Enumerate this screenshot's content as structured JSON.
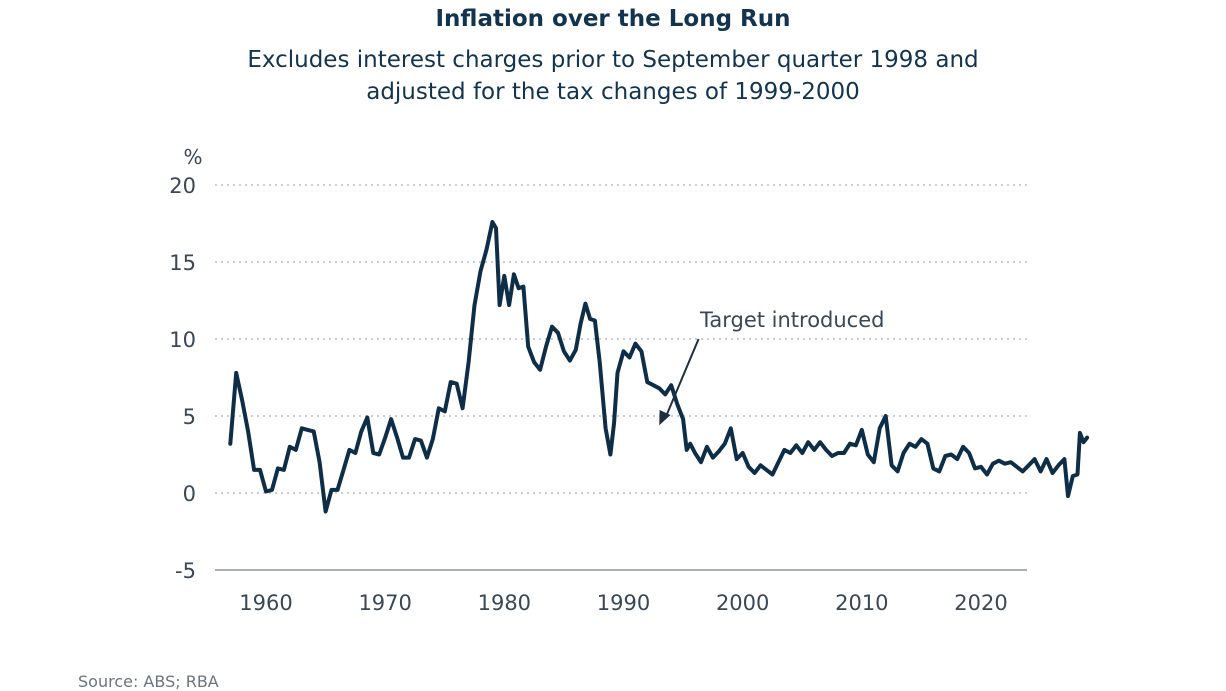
{
  "chart_data": {
    "type": "line",
    "title": "Inflation over the Long Run",
    "subtitle": [
      "Excludes interest charges prior to September quarter 1998 and",
      "adjusted for the tax changes of 1999-2000"
    ],
    "y_unit": "%",
    "ylim": [
      -5,
      20
    ],
    "yticks": [
      20,
      15,
      10,
      5,
      0,
      -5
    ],
    "xlim": [
      1956,
      2024
    ],
    "xticks": [
      1960,
      1970,
      1980,
      1990,
      2000,
      2010,
      2020
    ],
    "grid": true,
    "series": [
      {
        "color": "#0e2e48",
        "points": [
          [
            1957.0,
            3.2
          ],
          [
            1957.5,
            7.8
          ],
          [
            1958.0,
            6.0
          ],
          [
            1958.5,
            4.0
          ],
          [
            1959.0,
            1.5
          ],
          [
            1959.5,
            1.5
          ],
          [
            1960.0,
            0.1
          ],
          [
            1960.5,
            0.2
          ],
          [
            1961.0,
            1.6
          ],
          [
            1961.5,
            1.5
          ],
          [
            1962.0,
            3.0
          ],
          [
            1962.5,
            2.8
          ],
          [
            1963.0,
            4.2
          ],
          [
            1963.5,
            4.1
          ],
          [
            1964.0,
            4.0
          ],
          [
            1964.5,
            2.0
          ],
          [
            1965.0,
            -1.2
          ],
          [
            1965.5,
            0.2
          ],
          [
            1966.0,
            0.2
          ],
          [
            1966.5,
            1.5
          ],
          [
            1967.0,
            2.8
          ],
          [
            1967.5,
            2.6
          ],
          [
            1968.0,
            4.0
          ],
          [
            1968.5,
            4.9
          ],
          [
            1969.0,
            2.6
          ],
          [
            1969.5,
            2.5
          ],
          [
            1970.0,
            3.6
          ],
          [
            1970.5,
            4.8
          ],
          [
            1971.0,
            3.6
          ],
          [
            1971.5,
            2.3
          ],
          [
            1972.0,
            2.3
          ],
          [
            1972.5,
            3.5
          ],
          [
            1973.0,
            3.4
          ],
          [
            1973.5,
            2.3
          ],
          [
            1974.0,
            3.5
          ],
          [
            1974.5,
            5.5
          ],
          [
            1975.0,
            5.3
          ],
          [
            1975.5,
            7.2
          ],
          [
            1976.0,
            7.1
          ],
          [
            1976.5,
            5.5
          ],
          [
            1977.0,
            8.5
          ],
          [
            1977.5,
            12.2
          ],
          [
            1978.0,
            14.4
          ],
          [
            1978.5,
            15.8
          ],
          [
            1979.0,
            17.6
          ],
          [
            1979.3,
            17.2
          ],
          [
            1979.6,
            12.2
          ],
          [
            1980.0,
            14.1
          ],
          [
            1980.4,
            12.2
          ],
          [
            1980.8,
            14.2
          ],
          [
            1981.2,
            13.3
          ],
          [
            1981.6,
            13.4
          ],
          [
            1982.0,
            9.5
          ],
          [
            1982.5,
            8.5
          ],
          [
            1983.0,
            8.0
          ],
          [
            1983.5,
            9.5
          ],
          [
            1984.0,
            10.8
          ],
          [
            1984.5,
            10.4
          ],
          [
            1985.0,
            9.2
          ],
          [
            1985.5,
            8.6
          ],
          [
            1986.0,
            9.3
          ],
          [
            1986.4,
            11.0
          ],
          [
            1986.8,
            12.3
          ],
          [
            1987.2,
            11.3
          ],
          [
            1987.6,
            11.2
          ],
          [
            1988.0,
            8.5
          ],
          [
            1988.5,
            4.2
          ],
          [
            1988.9,
            2.5
          ],
          [
            1989.2,
            4.5
          ],
          [
            1989.5,
            7.8
          ],
          [
            1990.0,
            9.2
          ],
          [
            1990.5,
            8.8
          ],
          [
            1991.0,
            9.7
          ],
          [
            1991.5,
            9.2
          ],
          [
            1992.0,
            7.2
          ],
          [
            1992.5,
            7.0
          ],
          [
            1993.0,
            6.8
          ],
          [
            1993.5,
            6.4
          ],
          [
            1994.0,
            7.0
          ],
          [
            1994.5,
            5.8
          ],
          [
            1995.0,
            4.8
          ],
          [
            1995.3,
            2.8
          ],
          [
            1995.6,
            3.2
          ],
          [
            1996.0,
            2.6
          ],
          [
            1996.5,
            2.0
          ],
          [
            1997.0,
            3.0
          ],
          [
            1997.5,
            2.3
          ],
          [
            1998.0,
            2.7
          ],
          [
            1998.5,
            3.2
          ],
          [
            1999.0,
            4.2
          ],
          [
            1999.5,
            2.2
          ],
          [
            2000.0,
            2.6
          ],
          [
            2000.5,
            1.7
          ],
          [
            2001.0,
            1.3
          ],
          [
            2001.5,
            1.8
          ],
          [
            2002.0,
            1.5
          ],
          [
            2002.5,
            1.2
          ],
          [
            2003.0,
            2.0
          ],
          [
            2003.5,
            2.8
          ],
          [
            2004.0,
            2.6
          ],
          [
            2004.5,
            3.1
          ],
          [
            2005.0,
            2.6
          ],
          [
            2005.5,
            3.3
          ],
          [
            2006.0,
            2.8
          ],
          [
            2006.5,
            3.3
          ],
          [
            2007.0,
            2.8
          ],
          [
            2007.5,
            2.4
          ],
          [
            2008.0,
            2.6
          ],
          [
            2008.5,
            2.6
          ],
          [
            2009.0,
            3.2
          ],
          [
            2009.5,
            3.1
          ],
          [
            2010.0,
            4.1
          ],
          [
            2010.5,
            2.5
          ],
          [
            2011.0,
            2.0
          ],
          [
            2011.5,
            4.2
          ],
          [
            2012.0,
            5.0
          ],
          [
            2012.5,
            1.8
          ],
          [
            2013.0,
            1.4
          ],
          [
            2013.5,
            2.6
          ],
          [
            2014.0,
            3.2
          ],
          [
            2014.5,
            3.0
          ],
          [
            2015.0,
            3.5
          ],
          [
            2015.5,
            3.2
          ],
          [
            2016.0,
            1.6
          ],
          [
            2016.5,
            1.4
          ],
          [
            2017.0,
            2.4
          ],
          [
            2017.5,
            2.5
          ],
          [
            2018.0,
            2.2
          ],
          [
            2018.5,
            3.0
          ],
          [
            2019.0,
            2.6
          ],
          [
            2019.5,
            1.6
          ],
          [
            2020.0,
            1.7
          ],
          [
            2020.5,
            1.2
          ],
          [
            2021.0,
            1.9
          ],
          [
            2021.5,
            2.1
          ],
          [
            2022.0,
            1.9
          ],
          [
            2022.5,
            2.0
          ],
          [
            2023.0,
            1.7
          ],
          [
            2023.5,
            1.4
          ],
          [
            2024.0,
            1.8
          ],
          [
            2024.5,
            2.2
          ],
          [
            2025.0,
            1.4
          ],
          [
            2025.5,
            2.2
          ],
          [
            2026.0,
            1.3
          ],
          [
            2026.5,
            1.8
          ],
          [
            2027.0,
            2.2
          ],
          [
            2027.3,
            -0.2
          ],
          [
            2027.7,
            1.1
          ],
          [
            2028.1,
            1.2
          ],
          [
            2028.3,
            3.9
          ],
          [
            2028.6,
            3.3
          ],
          [
            2028.9,
            3.6
          ]
        ]
      }
    ],
    "annotation": {
      "text": "Target introduced",
      "arrow_from": [
        1996.3,
        10.0
      ],
      "arrow_to": [
        1993.0,
        4.4
      ]
    },
    "source": "Source: ABS; RBA"
  }
}
